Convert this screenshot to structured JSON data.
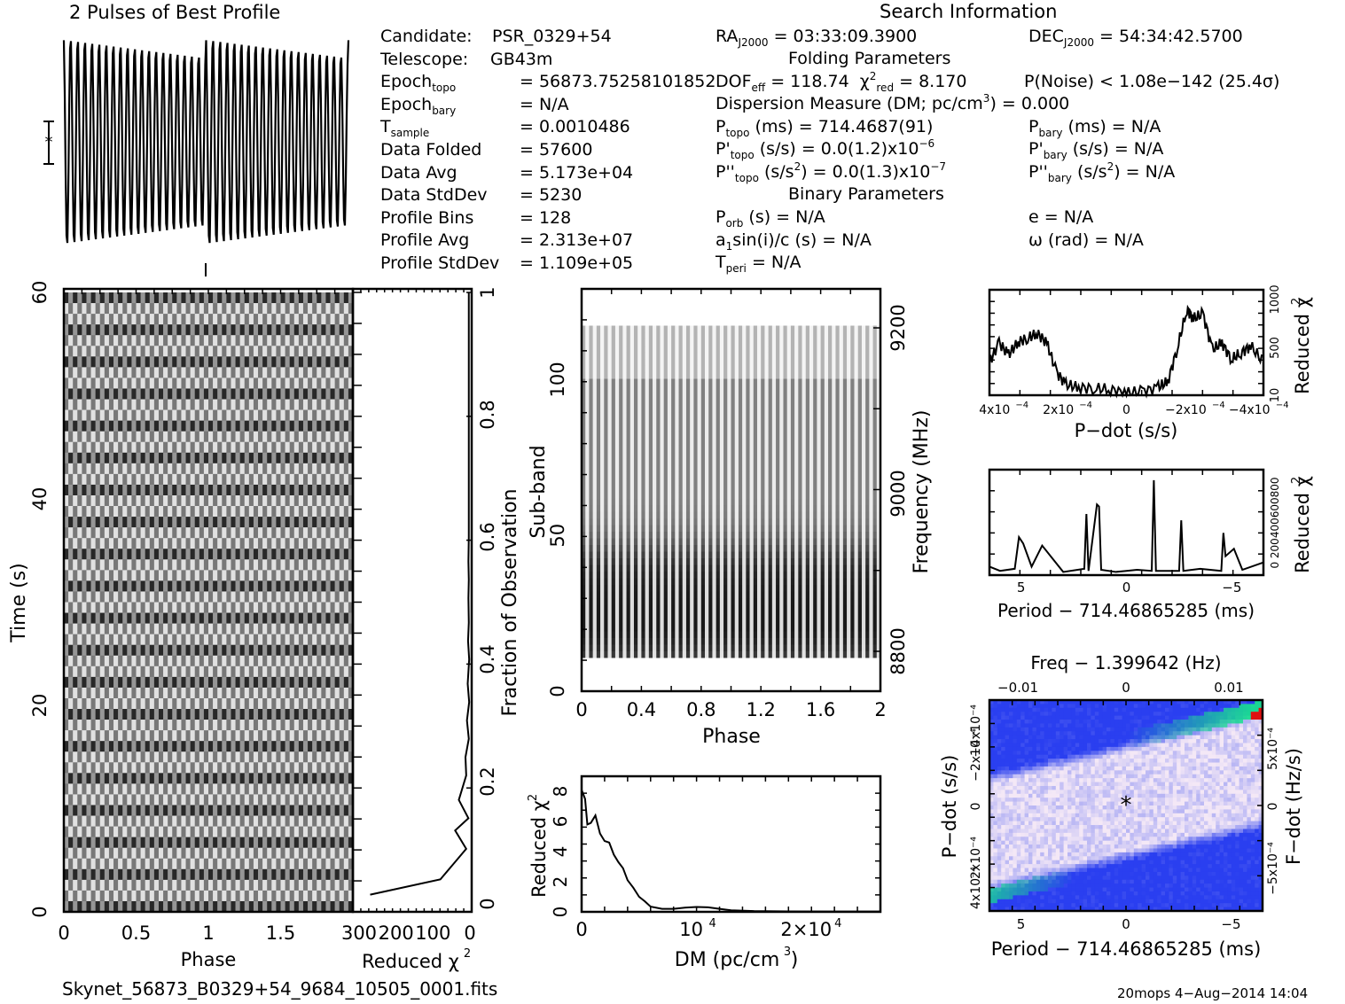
{
  "header": {
    "profile_title": "2 Pulses of Best Profile",
    "search_title": "Search Information",
    "folding_title": "Folding Parameters",
    "binary_title": "Binary Parameters"
  },
  "info_left": [
    {
      "label": "Candidate:",
      "value": "PSR_0329+54"
    },
    {
      "label": "Telescope:",
      "value": "GB43m"
    },
    {
      "label": "Epoch",
      "sub": "topo",
      "value": "= 56873.75258101852"
    },
    {
      "label": "Epoch",
      "sub": "bary",
      "value": "= N/A"
    },
    {
      "label": "T",
      "sub": "sample",
      "value": "=  0.0010486"
    },
    {
      "label": "Data Folded",
      "value": "=  57600"
    },
    {
      "label": "Data Avg",
      "value": "=  5.173e+04"
    },
    {
      "label": "Data StdDev",
      "value": "=  5230"
    },
    {
      "label": "Profile Bins",
      "value": "=  128"
    },
    {
      "label": "Profile Avg",
      "value": "=  2.313e+07"
    },
    {
      "label": "Profile StdDev",
      "value": "=  1.109e+05"
    }
  ],
  "search": {
    "ra_label": "RA",
    "ra_sub": "J2000",
    "ra_value": "= 03:33:09.3900",
    "dec_label": "DEC",
    "dec_sub": "J2000",
    "dec_value": "= 54:34:42.5700",
    "dof_label": "DOF",
    "dof_sub": "eff",
    "dof_value": "= 118.74",
    "chi_label": "χ",
    "chi_sub": "red",
    "chi_value": "= 8.170",
    "pnoise": "P(Noise) < 1.08e−142   (25.4σ)",
    "dm_text": "Dispersion Measure (DM; pc/cm",
    "dm_value": ") = 0.000",
    "ptopo_value": "(ms) =  714.4687(91)",
    "pbary_value": "(ms) = N/A",
    "pdtopo_value": "(s/s) = 0.0(1.2)x10",
    "pdtopo_exp": "−6",
    "pdbary_value": "(s/s) = N/A",
    "pddtopo_value": "(s/s",
    "pddtopo_value2": ") = 0.0(1.3)x10",
    "pddtopo_exp": "−7",
    "pddbary_value2": ") = N/A",
    "porb_value": "(s) = N/A",
    "asini_value": "sin(i)/c (s) = N/A",
    "tperi_value": "= N/A",
    "e_value": "e = N/A",
    "omega_value": "ω (rad) = N/A"
  },
  "footer": {
    "filename": "Skynet_56873_B0329+54_9684_10505_0001.fits",
    "stamp": "20mops   4−Aug−2014 14:04"
  },
  "chart_data": [
    {
      "id": "profile",
      "type": "line",
      "title": "2 Pulses of Best Profile",
      "xlabel": "",
      "ylabel": "",
      "description": "Rapidly oscillating profile, ~2 pulses of phase with ~20 oscillations per pulse, amplitude slightly decreasing across each pulse",
      "oscillations_per_pulse": 20,
      "amplitude_start": 1.0,
      "amplitude_end": 0.82
    },
    {
      "id": "time-phase",
      "type": "heatmap",
      "xlabel": "Phase",
      "ylabel": "Time (s)",
      "xticks": [
        "0",
        "0.5",
        "1",
        "1.5"
      ],
      "xlim": [
        0,
        2
      ],
      "yticks": [
        "0",
        "20",
        "40",
        "60"
      ],
      "ylim": [
        0,
        60
      ],
      "colormap": "grayscale"
    },
    {
      "id": "time-chi2",
      "type": "line",
      "xlabel": "Reduced χ²",
      "ylabel": "Fraction of Observation",
      "xticks": [
        "300",
        "200",
        "100",
        "0"
      ],
      "xlim": [
        300,
        0
      ],
      "yticks": [
        "0",
        "0.2",
        "0.4",
        "0.6",
        "0.8",
        "1"
      ],
      "ylim": [
        0,
        1
      ],
      "x": [
        270,
        80,
        10,
        40,
        4,
        30,
        10,
        12,
        3,
        8,
        2,
        6,
        2,
        5,
        3,
        4,
        3,
        4,
        3,
        3,
        3,
        3,
        3,
        3,
        3,
        3,
        3,
        3,
        3,
        3,
        3
      ],
      "y": [
        0.015,
        0.04,
        0.09,
        0.12,
        0.14,
        0.17,
        0.21,
        0.24,
        0.27,
        0.3,
        0.33,
        0.36,
        0.4,
        0.43,
        0.46,
        0.5,
        0.53,
        0.56,
        0.6,
        0.63,
        0.66,
        0.7,
        0.73,
        0.76,
        0.8,
        0.83,
        0.86,
        0.9,
        0.93,
        0.96,
        1.0
      ]
    },
    {
      "id": "subband-phase",
      "type": "heatmap",
      "xlabel": "Phase",
      "ylabel": "Sub-band",
      "y2label": "Frequency (MHz)",
      "xticks": [
        "0",
        "0.4",
        "0.8",
        "1.2",
        "1.6",
        "2"
      ],
      "xlim": [
        0,
        2
      ],
      "yticks": [
        "0",
        "50",
        "100"
      ],
      "ylim": [
        0,
        128
      ],
      "y2ticks": [
        "8800",
        "9000",
        "9200"
      ],
      "signal_subband_range": [
        10,
        117
      ],
      "colormap": "grayscale"
    },
    {
      "id": "dm-chi2",
      "type": "line",
      "xlabel": "DM (pc/cm³)",
      "ylabel": "Reduced χ²",
      "xticks": [
        "0",
        "10⁴",
        "2×10⁴"
      ],
      "xlim": [
        0,
        26000
      ],
      "yticks": [
        "0",
        "2",
        "4",
        "6",
        "8"
      ],
      "ylim": [
        0,
        9
      ],
      "x": [
        0,
        300,
        500,
        800,
        1200,
        1600,
        2000,
        2400,
        2800,
        3200,
        3600,
        4000,
        4500,
        5000,
        5500,
        6000,
        7000,
        8000,
        9000,
        10000,
        11000,
        12000,
        13000,
        15000,
        18000,
        22000,
        26000
      ],
      "y": [
        8.1,
        7.5,
        5.8,
        5.9,
        6.4,
        5.2,
        4.7,
        4.6,
        3.8,
        3.3,
        2.9,
        2.1,
        1.6,
        1.0,
        0.7,
        0.35,
        0.2,
        0.2,
        0.28,
        0.32,
        0.3,
        0.2,
        0.1,
        0.05,
        0.03,
        0.02,
        0.02
      ]
    },
    {
      "id": "pdot-chi2",
      "type": "line",
      "xlabel": "P−dot (s/s)",
      "ylabel": "Reduced χ²",
      "xticks": [
        "4x10⁻⁴",
        "2x10⁻⁴",
        "0",
        "−2x10⁻⁴",
        "−4x10⁻⁴"
      ],
      "xlim": [
        0.00043,
        -0.00043
      ],
      "yticks": [
        "10",
        "500",
        "1000"
      ],
      "ylim": [
        10,
        1100
      ],
      "x": [
        0.00043,
        0.0004,
        0.00037,
        0.00034,
        0.00031,
        0.00028,
        0.00025,
        0.00022,
        0.00019,
        0.00015,
        0.0001,
        5e-05,
        0,
        -5e-05,
        -0.0001,
        -0.00013,
        -0.00016,
        -0.00019,
        -0.00021,
        -0.00024,
        -0.00027,
        -0.0003,
        -0.00033,
        -0.00036,
        -0.00039,
        -0.00043
      ],
      "y": [
        350,
        550,
        430,
        560,
        600,
        650,
        550,
        250,
        120,
        90,
        80,
        70,
        30,
        50,
        90,
        150,
        500,
        900,
        800,
        850,
        480,
        550,
        380,
        450,
        520,
        350
      ]
    },
    {
      "id": "period-chi2",
      "type": "line",
      "xlabel": "Period − 714.46865285 (ms)",
      "ylabel": "Reduced χ²",
      "xticks": [
        "5",
        "0",
        "−5"
      ],
      "xlim": [
        6.5,
        -6.5
      ],
      "yticks": [
        "0",
        "200",
        "400",
        "600",
        "800"
      ],
      "ylim": [
        0,
        1000
      ],
      "x": [
        6.5,
        6.0,
        5.3,
        5.1,
        4.9,
        4.5,
        4.0,
        3.0,
        2.0,
        1.9,
        1.8,
        1.4,
        1.3,
        1.2,
        0.5,
        0,
        -0.5,
        -1.2,
        -1.3,
        -1.4,
        -2.5,
        -2.6,
        -2.7,
        -3.5,
        -4.5,
        -4.6,
        -4.7,
        -5.1,
        -5.5,
        -6.5
      ],
      "y": [
        80,
        40,
        60,
        360,
        300,
        80,
        280,
        30,
        60,
        580,
        40,
        670,
        650,
        50,
        30,
        40,
        50,
        40,
        900,
        40,
        40,
        520,
        40,
        60,
        40,
        400,
        180,
        250,
        50,
        120
      ]
    },
    {
      "id": "period-pdot",
      "type": "heatmap",
      "title": "Freq − 1.399642 (Hz)",
      "xlabel": "Period − 714.46865285 (ms)",
      "ylabel": "P−dot (s/s)",
      "y2label": "F−dot (Hz/s)",
      "xticks": [
        "5",
        "0",
        "−5"
      ],
      "xlim": [
        6.5,
        -6.5
      ],
      "x2ticks": [
        "−0.01",
        "0",
        "0.01"
      ],
      "yticks": [
        "4x10⁻⁴",
        "2x10⁻⁴",
        "0",
        "−2x10⁻⁴",
        "−4x10⁻⁴"
      ],
      "ylim": [
        0.00043,
        -0.00043
      ],
      "y2ticks": [
        "−5x10⁻⁴",
        "0",
        "5x10⁻⁴"
      ],
      "best_marker": [
        0,
        0
      ],
      "colors": {
        "low": "#f4e8f6",
        "mid": "#2a3ff0",
        "high": "#18e88a",
        "peak": "#e01010"
      }
    }
  ]
}
